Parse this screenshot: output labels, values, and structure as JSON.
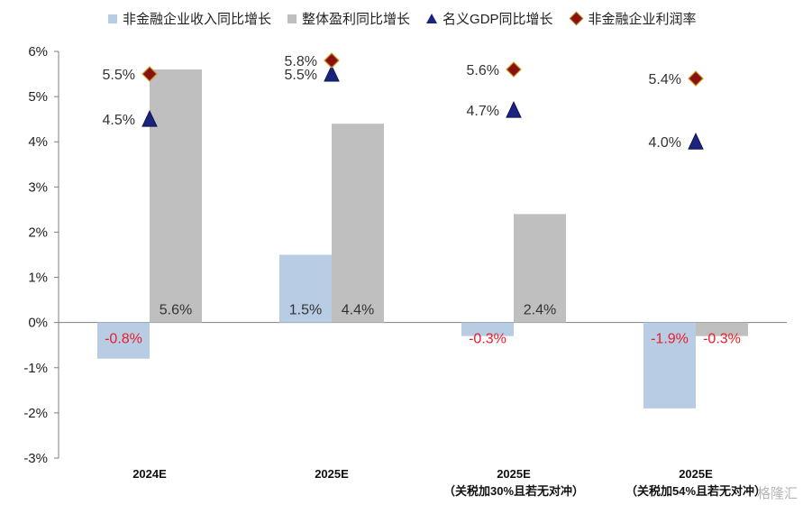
{
  "chart_data": {
    "type": "bar",
    "categories": [
      {
        "line1": "2024E",
        "line2": ""
      },
      {
        "line1": "2025E",
        "line2": ""
      },
      {
        "line1": "2025E",
        "line2": "（关税加30%且若无对冲）"
      },
      {
        "line1": "2025E",
        "line2": "（关税加54%且若无对冲）"
      }
    ],
    "series": [
      {
        "name": "非金融企业收入同比增长",
        "kind": "bar",
        "color": "#b8cce4",
        "values": [
          -0.8,
          1.5,
          -0.3,
          -1.9
        ],
        "labels": [
          "-0.8%",
          "1.5%",
          "-0.3%",
          "-1.9%"
        ]
      },
      {
        "name": "整体盈利同比增长",
        "kind": "bar",
        "color": "#bfbfbf",
        "values": [
          5.6,
          4.4,
          2.4,
          -0.3
        ],
        "labels": [
          "5.6%",
          "4.4%",
          "2.4%",
          "-0.3%"
        ]
      },
      {
        "name": "名义GDP同比增长",
        "kind": "triangle",
        "color": "#1a237e",
        "values": [
          4.5,
          5.5,
          4.7,
          4.0
        ],
        "labels": [
          "4.5%",
          "5.5%",
          "4.7%",
          "4.0%"
        ]
      },
      {
        "name": "非金融企业利润率",
        "kind": "diamond",
        "color": "#8b1010",
        "values": [
          5.5,
          5.8,
          5.6,
          5.4
        ],
        "labels": [
          "5.5%",
          "5.8%",
          "5.6%",
          "5.4%"
        ]
      }
    ],
    "ylim": [
      -3,
      6
    ],
    "yticks": [
      "-3%",
      "-2%",
      "-1%",
      "0%",
      "1%",
      "2%",
      "3%",
      "4%",
      "5%",
      "6%"
    ],
    "negative_label_color": "#e8202a",
    "positive_label_color": "#333333",
    "legend_position": "top",
    "grid": false,
    "watermark": "格隆汇"
  }
}
